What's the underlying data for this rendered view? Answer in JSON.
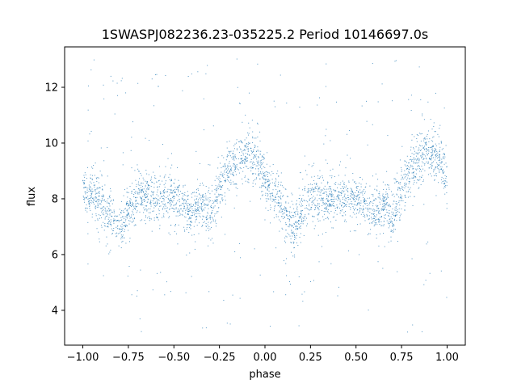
{
  "chart_data": {
    "type": "scatter",
    "title": "1SWASPJ082236.23-035225.2 Period 10146697.0s",
    "xlabel": "phase",
    "ylabel": "flux",
    "xlim": [
      -1.1,
      1.1
    ],
    "ylim": [
      2.75,
      13.45
    ],
    "x_ticks": [
      -1.0,
      -0.75,
      -0.5,
      -0.25,
      0.0,
      0.25,
      0.5,
      0.75,
      1.0
    ],
    "x_tick_labels": [
      "−1.00",
      "−0.75",
      "−0.50",
      "−0.25",
      "0.00",
      "0.25",
      "0.50",
      "0.75",
      "1.00"
    ],
    "y_ticks": [
      4,
      6,
      8,
      10,
      12
    ],
    "y_tick_labels": [
      "4",
      "6",
      "8",
      "10",
      "12"
    ],
    "grid": false,
    "legend": "none",
    "marker_color": "#1f77b4",
    "series": [
      {
        "trend": [
          [
            -1.0,
            8.4
          ],
          [
            -0.97,
            7.9
          ],
          [
            -0.95,
            8.3
          ],
          [
            -0.9,
            7.8
          ],
          [
            -0.85,
            7.4
          ],
          [
            -0.8,
            7.0
          ],
          [
            -0.75,
            7.5
          ],
          [
            -0.7,
            8.2
          ],
          [
            -0.65,
            8.1
          ],
          [
            -0.6,
            8.0
          ],
          [
            -0.55,
            8.1
          ],
          [
            -0.5,
            8.0
          ],
          [
            -0.45,
            7.9
          ],
          [
            -0.42,
            7.4
          ],
          [
            -0.38,
            7.6
          ],
          [
            -0.33,
            7.8
          ],
          [
            -0.3,
            7.3
          ],
          [
            -0.27,
            8.0
          ],
          [
            -0.22,
            8.8
          ],
          [
            -0.18,
            9.2
          ],
          [
            -0.12,
            9.6
          ],
          [
            -0.08,
            9.6
          ],
          [
            -0.04,
            9.3
          ],
          [
            0.0,
            8.7
          ],
          [
            0.04,
            8.2
          ],
          [
            0.08,
            7.9
          ],
          [
            0.12,
            7.4
          ],
          [
            0.16,
            7.0
          ],
          [
            0.2,
            7.5
          ],
          [
            0.25,
            8.2
          ],
          [
            0.3,
            8.1
          ],
          [
            0.35,
            8.0
          ],
          [
            0.4,
            8.0
          ],
          [
            0.45,
            8.1
          ],
          [
            0.5,
            8.0
          ],
          [
            0.55,
            7.8
          ],
          [
            0.58,
            7.4
          ],
          [
            0.62,
            7.6
          ],
          [
            0.67,
            7.8
          ],
          [
            0.7,
            7.3
          ],
          [
            0.73,
            8.0
          ],
          [
            0.78,
            8.8
          ],
          [
            0.82,
            9.2
          ],
          [
            0.88,
            9.6
          ],
          [
            0.92,
            9.6
          ],
          [
            0.96,
            9.3
          ],
          [
            1.0,
            8.7
          ]
        ],
        "scatter_sd": 0.45,
        "outlier_range": [
          3.2,
          13.1
        ]
      }
    ]
  }
}
